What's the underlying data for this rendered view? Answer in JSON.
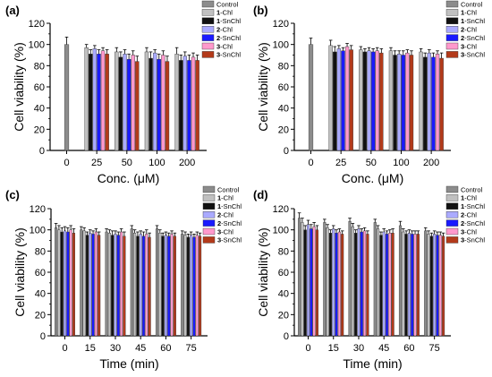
{
  "chart_data": [
    {
      "panel": "(a)",
      "type": "bar",
      "xlabel": "Conc. (μM)",
      "ylabel": "Cell viability (%)",
      "ylim": [
        0,
        120
      ],
      "yticks": [
        "0",
        "20",
        "40",
        "60",
        "80",
        "100",
        "120"
      ],
      "categories": [
        "0",
        "25",
        "50",
        "100",
        "200"
      ],
      "legend_placement": "top-right",
      "series": [
        {
          "name": "Control",
          "color": "#8c8c8c",
          "values": [
            100,
            null,
            null,
            null,
            null
          ],
          "errors": [
            7,
            null,
            null,
            null,
            null
          ]
        },
        {
          "name": "1-Chl",
          "color": "#c0c0c0",
          "values": [
            null,
            97,
            93,
            93,
            91
          ],
          "errors": [
            null,
            3,
            4,
            4,
            6
          ]
        },
        {
          "name": "1-SnChl",
          "color": "#111111",
          "values": [
            null,
            91,
            88,
            87,
            85
          ],
          "errors": [
            null,
            4,
            5,
            6,
            5
          ]
        },
        {
          "name": "2-Chl",
          "color": "#aaaaff",
          "values": [
            null,
            96,
            91,
            92,
            89
          ],
          "errors": [
            null,
            3,
            4,
            3,
            4
          ]
        },
        {
          "name": "2-SnChl",
          "color": "#1a1aff",
          "values": [
            null,
            91,
            86,
            86,
            85
          ],
          "errors": [
            null,
            4,
            5,
            5,
            5
          ]
        },
        {
          "name": "3-Chl",
          "color": "#ff99cc",
          "values": [
            null,
            94,
            90,
            90,
            88
          ],
          "errors": [
            null,
            3,
            4,
            4,
            4
          ]
        },
        {
          "name": "3-SnChl",
          "color": "#b33a1a",
          "values": [
            null,
            91,
            84,
            84,
            85
          ],
          "errors": [
            null,
            4,
            5,
            5,
            5
          ]
        }
      ]
    },
    {
      "panel": "(b)",
      "type": "bar",
      "xlabel": "Conc. (μM)",
      "ylabel": "Cell viability (%)",
      "ylim": [
        0,
        120
      ],
      "yticks": [
        "0",
        "20",
        "40",
        "60",
        "80",
        "100",
        "120"
      ],
      "categories": [
        "0",
        "25",
        "50",
        "100",
        "200"
      ],
      "legend_placement": "top-right",
      "series": [
        {
          "name": "Control",
          "color": "#8c8c8c",
          "values": [
            100,
            null,
            null,
            null,
            null
          ],
          "errors": [
            6,
            null,
            null,
            null,
            null
          ]
        },
        {
          "name": "1-Chl",
          "color": "#c0c0c0",
          "values": [
            null,
            99,
            95,
            94,
            93
          ],
          "errors": [
            null,
            5,
            3,
            3,
            3
          ]
        },
        {
          "name": "1-SnChl",
          "color": "#111111",
          "values": [
            null,
            93,
            93,
            90,
            88
          ],
          "errors": [
            null,
            5,
            3,
            4,
            4
          ]
        },
        {
          "name": "2-Chl",
          "color": "#aaaaff",
          "values": [
            null,
            96,
            94,
            91,
            92
          ],
          "errors": [
            null,
            3,
            3,
            3,
            3
          ]
        },
        {
          "name": "2-SnChl",
          "color": "#1a1aff",
          "values": [
            null,
            94,
            93,
            90,
            88
          ],
          "errors": [
            null,
            3,
            3,
            4,
            4
          ]
        },
        {
          "name": "3-Chl",
          "color": "#ff99cc",
          "values": [
            null,
            98,
            94,
            92,
            91
          ],
          "errors": [
            null,
            3,
            3,
            3,
            3
          ]
        },
        {
          "name": "3-SnChl",
          "color": "#b33a1a",
          "values": [
            null,
            95,
            92,
            90,
            87
          ],
          "errors": [
            null,
            4,
            4,
            4,
            5
          ]
        }
      ]
    },
    {
      "panel": "(c)",
      "type": "bar",
      "xlabel": "Time (min)",
      "ylabel": "Cell viability (%)",
      "ylim": [
        0,
        120
      ],
      "yticks": [
        "0",
        "20",
        "40",
        "60",
        "80",
        "100",
        "120"
      ],
      "categories": [
        "0",
        "15",
        "30",
        "45",
        "60",
        "75"
      ],
      "legend_placement": "top-right",
      "series": [
        {
          "name": "Control",
          "color": "#8c8c8c",
          "values": [
            102,
            100,
            98,
            101,
            101,
            96
          ],
          "errors": [
            4,
            3,
            3,
            3,
            3,
            3
          ]
        },
        {
          "name": "1-Chl",
          "color": "#c0c0c0",
          "values": [
            100,
            99,
            97,
            97,
            97,
            95
          ],
          "errors": [
            4,
            3,
            3,
            3,
            3,
            3
          ]
        },
        {
          "name": "1-SnChl",
          "color": "#111111",
          "values": [
            98,
            95,
            95,
            94,
            94,
            93
          ],
          "errors": [
            4,
            3,
            4,
            4,
            3,
            3
          ]
        },
        {
          "name": "2-Chl",
          "color": "#aaaaff",
          "values": [
            99,
            97,
            96,
            96,
            95,
            95
          ],
          "errors": [
            4,
            3,
            3,
            3,
            3,
            3
          ]
        },
        {
          "name": "2-SnChl",
          "color": "#1a1aff",
          "values": [
            98,
            96,
            95,
            94,
            94,
            93
          ],
          "errors": [
            4,
            3,
            3,
            4,
            3,
            3
          ]
        },
        {
          "name": "3-Chl",
          "color": "#ff99cc",
          "values": [
            100,
            98,
            98,
            96,
            96,
            95
          ],
          "errors": [
            4,
            3,
            3,
            4,
            3,
            3
          ]
        },
        {
          "name": "3-SnChl",
          "color": "#b33a1a",
          "values": [
            97,
            95,
            94,
            93,
            94,
            94
          ],
          "errors": [
            4,
            3,
            4,
            4,
            3,
            3
          ]
        }
      ]
    },
    {
      "panel": "(d)",
      "type": "bar",
      "xlabel": "Time (min)",
      "ylabel": "Cell viability (%)",
      "ylim": [
        0,
        120
      ],
      "yticks": [
        "0",
        "20",
        "40",
        "60",
        "80",
        "100",
        "120"
      ],
      "categories": [
        "0",
        "15",
        "30",
        "45",
        "60",
        "75"
      ],
      "legend_placement": "top-right",
      "series": [
        {
          "name": "Control",
          "color": "#8c8c8c",
          "values": [
            111,
            107,
            108,
            107,
            104,
            99
          ],
          "errors": [
            5,
            3,
            3,
            3,
            4,
            3
          ]
        },
        {
          "name": "1-Chl",
          "color": "#c0c0c0",
          "values": [
            107,
            102,
            103,
            101,
            98,
            96
          ],
          "errors": [
            4,
            3,
            3,
            3,
            3,
            3
          ]
        },
        {
          "name": "1-SnChl",
          "color": "#111111",
          "values": [
            100,
            97,
            97,
            95,
            96,
            94
          ],
          "errors": [
            4,
            3,
            3,
            3,
            3,
            3
          ]
        },
        {
          "name": "2-Chl",
          "color": "#aaaaff",
          "values": [
            105,
            101,
            101,
            98,
            97,
            96
          ],
          "errors": [
            4,
            3,
            3,
            3,
            3,
            3
          ]
        },
        {
          "name": "2-SnChl",
          "color": "#1a1aff",
          "values": [
            101,
            97,
            98,
            96,
            96,
            95
          ],
          "errors": [
            4,
            3,
            3,
            3,
            3,
            3
          ]
        },
        {
          "name": "3-Chl",
          "color": "#ff99cc",
          "values": [
            103,
            98,
            99,
            97,
            96,
            95
          ],
          "errors": [
            4,
            3,
            3,
            3,
            3,
            3
          ]
        },
        {
          "name": "3-SnChl",
          "color": "#b33a1a",
          "values": [
            100,
            96,
            96,
            97,
            96,
            94
          ],
          "errors": [
            4,
            3,
            3,
            4,
            3,
            3
          ]
        }
      ]
    }
  ]
}
